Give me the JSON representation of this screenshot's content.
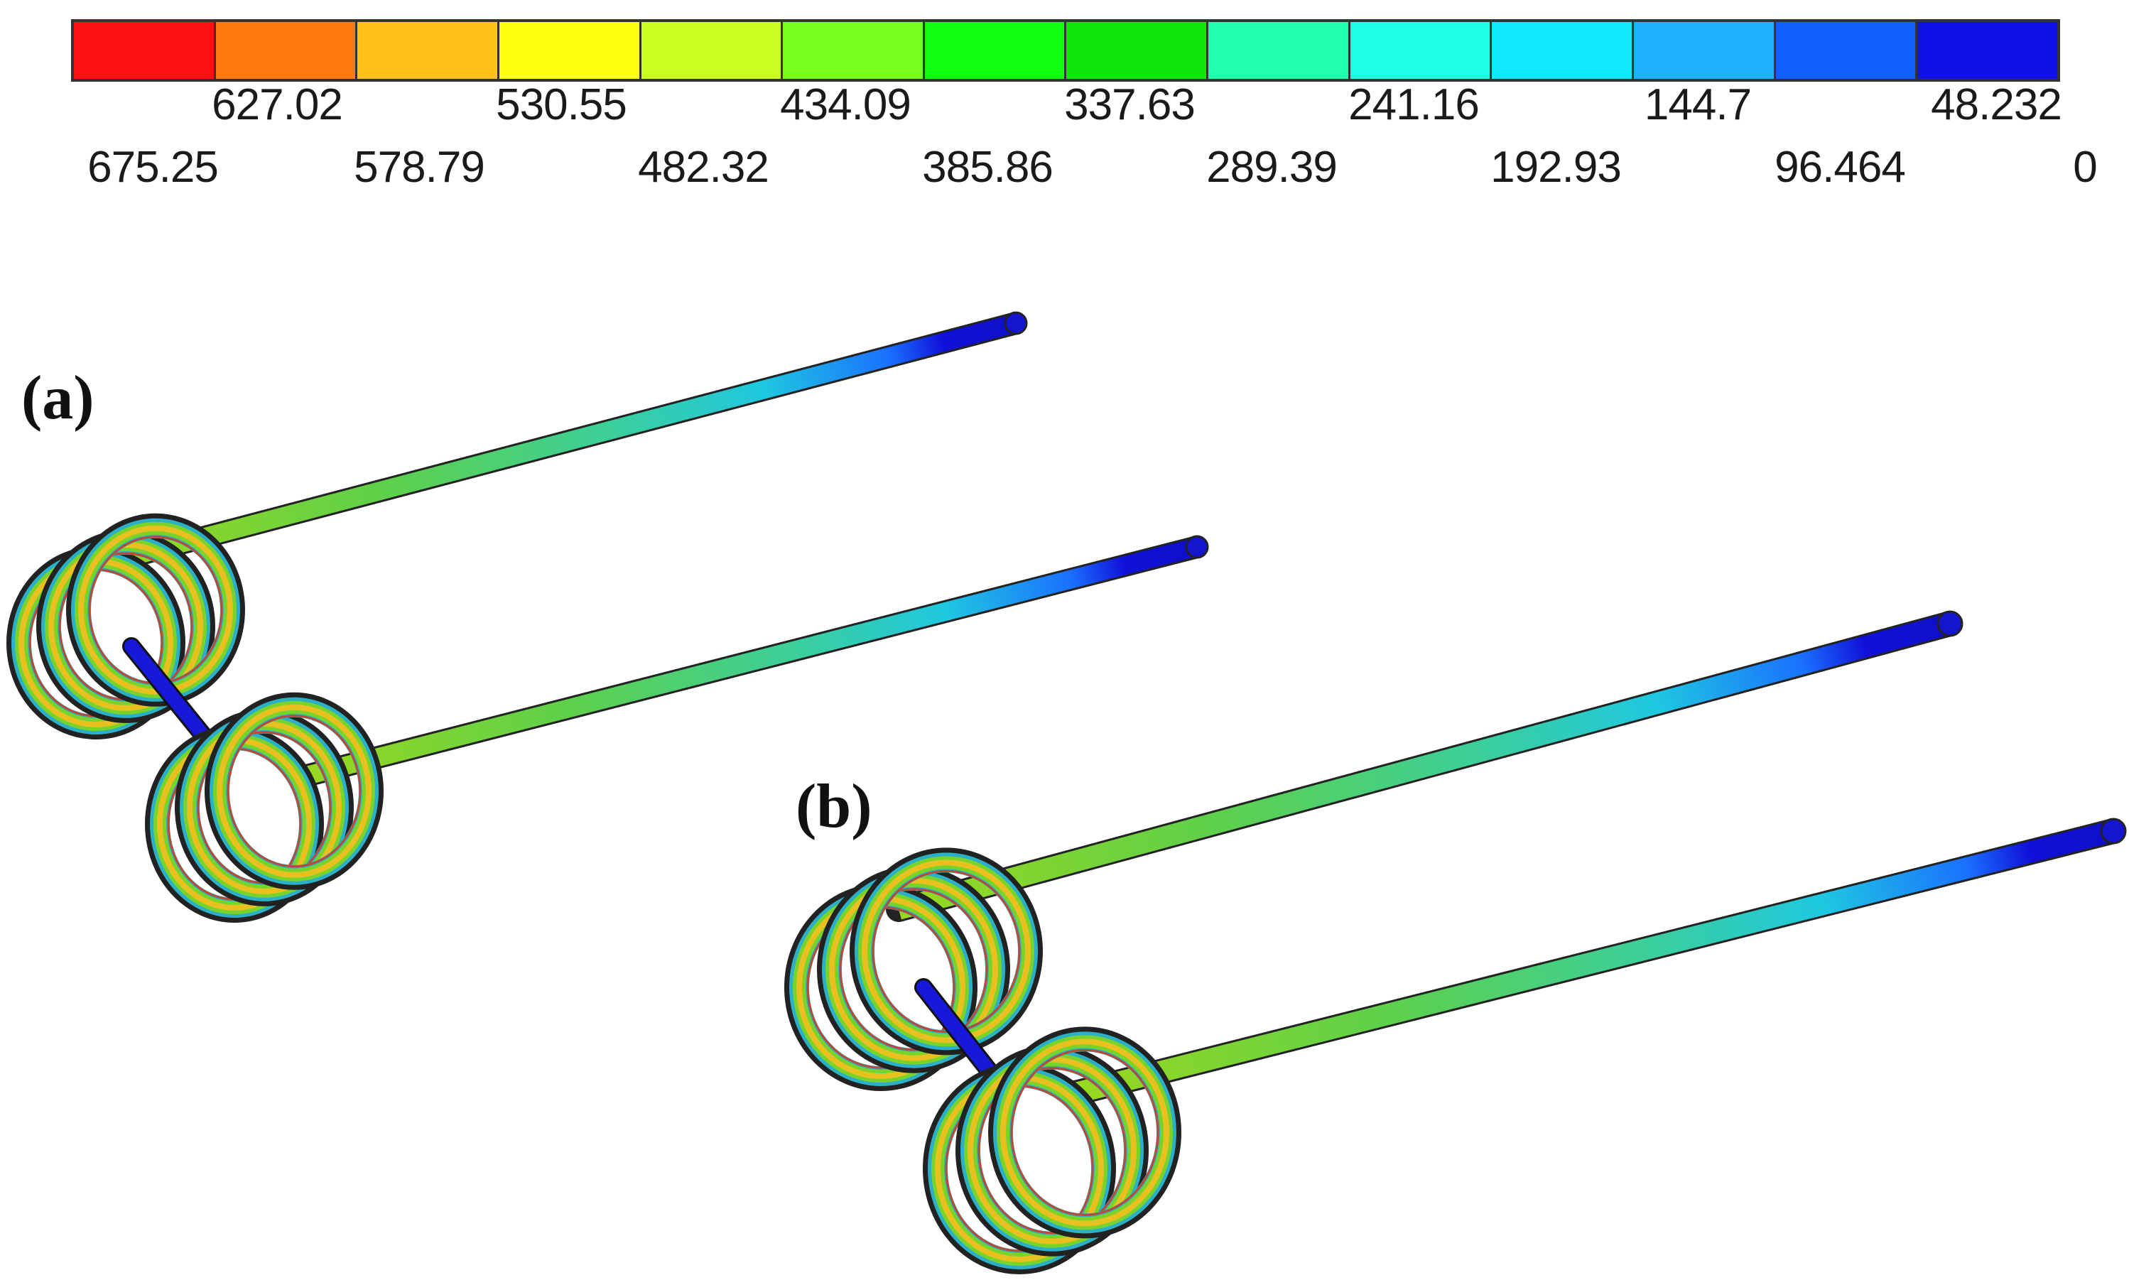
{
  "legend": {
    "colors": [
      "#ff1010",
      "#ff7a10",
      "#ffc21a",
      "#ffff10",
      "#c8ff20",
      "#78ff20",
      "#10ff10",
      "#10e60a",
      "#20ffb0",
      "#20ffe6",
      "#10e8ff",
      "#20b0ff",
      "#1060ff",
      "#1010e8"
    ],
    "upper_labels": [
      "627.02",
      "530.55",
      "434.09",
      "337.63",
      "241.16",
      "144.7",
      "48.232"
    ],
    "lower_labels": [
      "675.25",
      "578.79",
      "482.32",
      "385.86",
      "289.39",
      "192.93",
      "96.464",
      "0"
    ]
  },
  "panels": {
    "a": {
      "label": "(a)"
    },
    "b": {
      "label": "(b)"
    }
  }
}
